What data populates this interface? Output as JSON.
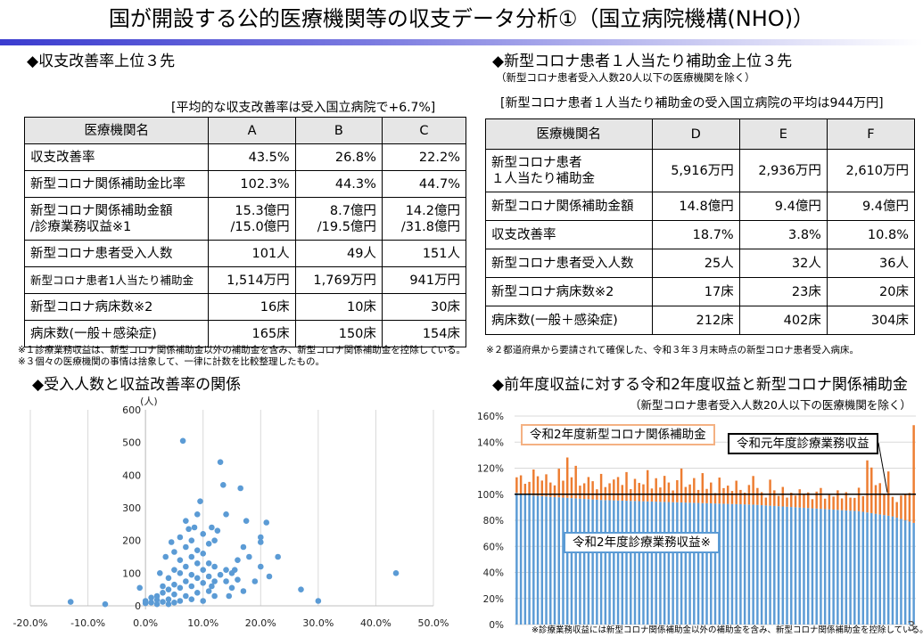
{
  "title": "国が開設する公的医療機関等の収支データ分析①（国立病院機構(NHO)）",
  "page_number": "3",
  "left_section": {
    "heading": "◆収支改善率上位３先",
    "avg_note": "[平均的な収支改善率は受入国立病院で+6.7%]",
    "table": {
      "headers": [
        "医療機関名",
        "A",
        "B",
        "C"
      ],
      "rows": [
        {
          "label": "収支改善率",
          "values": [
            "43.5%",
            "26.8%",
            "22.2%"
          ]
        },
        {
          "label": "新型コロナ関係補助金比率",
          "values": [
            "102.3%",
            "44.3%",
            "44.7%"
          ]
        },
        {
          "label": "新型コロナ関係補助金額\n/診療業務収益※1",
          "values": [
            "15.3億円\n/15.0億円",
            "8.7億円\n/19.5億円",
            "14.2億円\n/31.8億円"
          ]
        },
        {
          "label": "新型コロナ患者受入人数",
          "values": [
            "101人",
            "49人",
            "151人"
          ]
        },
        {
          "label": "新型コロナ患者1人当たり補助金",
          "values": [
            "1,514万円",
            "1,769万円",
            "941万円"
          ]
        },
        {
          "label": "新型コロナ病床数※2",
          "values": [
            "16床",
            "10床",
            "30床"
          ]
        },
        {
          "label": "病床数(一般＋感染症)",
          "values": [
            "165床",
            "150床",
            "154床"
          ]
        }
      ]
    },
    "note1": "※１診療業務収益は、新型コロナ関係補助金以外の補助金を含み、新型コロナ関係補助金を控除している。",
    "note2": "※３個々の医療機関の事情は捨象して、一律に計数を比較整理したもの。"
  },
  "right_section": {
    "heading": "◆新型コロナ患者１人当たり補助金上位３先",
    "subheading": "（新型コロナ患者受入人数20人以下の医療機関を除く）",
    "avg_note": "[新型コロナ患者１人当たり補助金の受入国立病院の平均は944万円]",
    "table": {
      "headers": [
        "医療機関名",
        "D",
        "E",
        "F"
      ],
      "rows": [
        {
          "label": "新型コロナ患者\n１人当たり補助金",
          "values": [
            "5,916万円",
            "2,936万円",
            "2,610万円"
          ]
        },
        {
          "label": "新型コロナ関係補助金額",
          "values": [
            "14.8億円",
            "9.4億円",
            "9.4億円"
          ]
        },
        {
          "label": "収支改善率",
          "values": [
            "18.7%",
            "3.8%",
            "10.8%"
          ]
        },
        {
          "label": "新型コロナ患者受入人数",
          "values": [
            "25人",
            "32人",
            "36人"
          ]
        },
        {
          "label": "新型コロナ病床数※2",
          "values": [
            "17床",
            "23床",
            "20床"
          ]
        },
        {
          "label": "病床数(一般＋感染症)",
          "values": [
            "212床",
            "402床",
            "304床"
          ]
        }
      ]
    },
    "note": "※２都道府県から要請されて確保した、令和３年３月末時点の新型コロナ患者受入病床。"
  },
  "chart_data": [
    {
      "type": "scatter",
      "title": "◆受入人数と収益改善率の関係",
      "y_unit_label": "(人)",
      "xlim": [
        -0.2,
        0.5
      ],
      "ylim": [
        0,
        600
      ],
      "x_ticks": [
        "-20.0%",
        "-10.0%",
        "0.0%",
        "10.0%",
        "20.0%",
        "30.0%",
        "40.0%",
        "50.0%"
      ],
      "y_ticks": [
        "0",
        "100",
        "200",
        "300",
        "400",
        "500",
        "600"
      ],
      "grid": "vertical",
      "color": "#5b9bd5",
      "points": [
        [
          -0.13,
          12
        ],
        [
          -0.07,
          5
        ],
        [
          0.0,
          8
        ],
        [
          0.0,
          15
        ],
        [
          0.01,
          10
        ],
        [
          0.01,
          25
        ],
        [
          0.02,
          5
        ],
        [
          0.02,
          18
        ],
        [
          0.02,
          30
        ],
        [
          0.03,
          12
        ],
        [
          0.03,
          40
        ],
        [
          0.03,
          60
        ],
        [
          0.04,
          5
        ],
        [
          0.04,
          20
        ],
        [
          0.04,
          50
        ],
        [
          0.04,
          85
        ],
        [
          0.05,
          10
        ],
        [
          0.05,
          35
        ],
        [
          0.05,
          65
        ],
        [
          0.05,
          110
        ],
        [
          0.05,
          165
        ],
        [
          0.06,
          15
        ],
        [
          0.06,
          55
        ],
        [
          0.06,
          100
        ],
        [
          0.06,
          140
        ],
        [
          0.06,
          210
        ],
        [
          0.065,
          505
        ],
        [
          0.07,
          30
        ],
        [
          0.07,
          75
        ],
        [
          0.07,
          120
        ],
        [
          0.07,
          180
        ],
        [
          0.07,
          260
        ],
        [
          0.075,
          235
        ],
        [
          0.08,
          20
        ],
        [
          0.08,
          60
        ],
        [
          0.08,
          95
        ],
        [
          0.08,
          150
        ],
        [
          0.08,
          200
        ],
        [
          0.085,
          240
        ],
        [
          0.09,
          40
        ],
        [
          0.09,
          85
        ],
        [
          0.09,
          130
        ],
        [
          0.09,
          170
        ],
        [
          0.09,
          280
        ],
        [
          0.1,
          15
        ],
        [
          0.1,
          70
        ],
        [
          0.1,
          110
        ],
        [
          0.1,
          160
        ],
        [
          0.1,
          220
        ],
        [
          0.11,
          45
        ],
        [
          0.11,
          90
        ],
        [
          0.11,
          130
        ],
        [
          0.11,
          190
        ],
        [
          0.115,
          240
        ],
        [
          0.12,
          30
        ],
        [
          0.12,
          75
        ],
        [
          0.12,
          120
        ],
        [
          0.12,
          200
        ],
        [
          0.125,
          230
        ],
        [
          0.13,
          95
        ],
        [
          0.13,
          440
        ],
        [
          0.135,
          370
        ],
        [
          0.14,
          75
        ],
        [
          0.14,
          110
        ],
        [
          0.14,
          280
        ],
        [
          0.145,
          30
        ],
        [
          0.15,
          55
        ],
        [
          0.15,
          100
        ],
        [
          0.16,
          80
        ],
        [
          0.16,
          140
        ],
        [
          0.165,
          360
        ],
        [
          0.17,
          45
        ],
        [
          0.17,
          180
        ],
        [
          0.175,
          260
        ],
        [
          0.18,
          150
        ],
        [
          0.19,
          75
        ],
        [
          0.2,
          210
        ],
        [
          0.2,
          120
        ],
        [
          0.2,
          195
        ],
        [
          0.21,
          255
        ],
        [
          0.215,
          90
        ],
        [
          0.23,
          150
        ],
        [
          0.27,
          50
        ],
        [
          0.435,
          100
        ],
        [
          -0.01,
          55
        ],
        [
          0.035,
          150
        ],
        [
          0.045,
          195
        ],
        [
          0.095,
          320
        ],
        [
          0.025,
          100
        ],
        [
          0.115,
          60
        ],
        [
          0.155,
          110
        ],
        [
          0.3,
          15
        ]
      ]
    },
    {
      "type": "bar",
      "title": "◆前年度収益に対する令和2年度収益と新型コロナ関係補助金",
      "subtitle": "（新型コロナ患者受入人数20人以下の医療機関を除く）",
      "ylim": [
        0,
        1.6
      ],
      "y_ticks": [
        "0%",
        "20%",
        "40%",
        "60%",
        "80%",
        "100%",
        "120%",
        "140%",
        "160%"
      ],
      "reference_line": 1.0,
      "series": [
        {
          "name": "令和2年度診療業務収益※",
          "color": "#5b9bd5",
          "values": [
            1.01,
            1.005,
            1.0,
            0.995,
            0.99,
            0.988,
            0.985,
            0.983,
            0.98,
            0.978,
            0.976,
            0.974,
            0.972,
            0.97,
            0.968,
            0.966,
            0.964,
            0.962,
            0.96,
            0.958,
            0.956,
            0.955,
            0.954,
            0.953,
            0.952,
            0.951,
            0.95,
            0.949,
            0.948,
            0.947,
            0.946,
            0.945,
            0.944,
            0.943,
            0.942,
            0.941,
            0.94,
            0.939,
            0.938,
            0.937,
            0.936,
            0.935,
            0.934,
            0.933,
            0.932,
            0.931,
            0.93,
            0.929,
            0.928,
            0.927,
            0.926,
            0.925,
            0.924,
            0.923,
            0.922,
            0.921,
            0.92,
            0.918,
            0.916,
            0.914,
            0.912,
            0.91,
            0.908,
            0.906,
            0.904,
            0.902,
            0.9,
            0.898,
            0.896,
            0.894,
            0.892,
            0.89,
            0.888,
            0.886,
            0.884,
            0.882,
            0.88,
            0.878,
            0.876,
            0.874,
            0.872,
            0.87,
            0.865,
            0.86,
            0.855,
            0.85,
            0.845,
            0.84,
            0.835,
            0.83,
            0.82,
            0.81,
            0.8,
            0.79,
            0.78
          ]
        },
        {
          "name": "令和2年度新型コロナ関係補助金",
          "color": "#ed7d31",
          "values": [
            0.12,
            0.14,
            0.08,
            0.1,
            0.2,
            0.15,
            0.12,
            0.17,
            0.11,
            0.09,
            0.22,
            0.13,
            0.31,
            0.16,
            0.25,
            0.1,
            0.12,
            0.17,
            0.14,
            0.08,
            0.2,
            0.1,
            0.13,
            0.16,
            0.18,
            0.12,
            0.22,
            0.09,
            0.17,
            0.14,
            0.13,
            0.24,
            0.1,
            0.18,
            0.11,
            0.2,
            0.15,
            0.09,
            0.17,
            0.26,
            0.12,
            0.14,
            0.19,
            0.1,
            0.23,
            0.11,
            0.16,
            0.08,
            0.2,
            0.12,
            0.14,
            0.1,
            0.18,
            0.11,
            0.09,
            0.15,
            0.22,
            0.13,
            0.1,
            0.06,
            0.2,
            0.12,
            0.08,
            0.15,
            0.07,
            0.11,
            0.09,
            0.14,
            0.1,
            0.12,
            0.07,
            0.13,
            0.16,
            0.08,
            0.11,
            0.1,
            0.15,
            0.09,
            0.14,
            0.1,
            0.1,
            0.18,
            0.12,
            0.4,
            0.35,
            0.22,
            0.24,
            0.16,
            0.34,
            0.15,
            0.12,
            0.18,
            0.2,
            0.22,
            0.75
          ]
        }
      ],
      "annotations": [
        "令和2年度新型コロナ関係補助金",
        "令和元年度診療業務収益",
        "令和2年度診療業務収益※"
      ],
      "footnote": "※診療業務収益には新型コロナ関係補助金以外の補助金を含み、新型コロナ関係補助金を控除している。"
    }
  ]
}
